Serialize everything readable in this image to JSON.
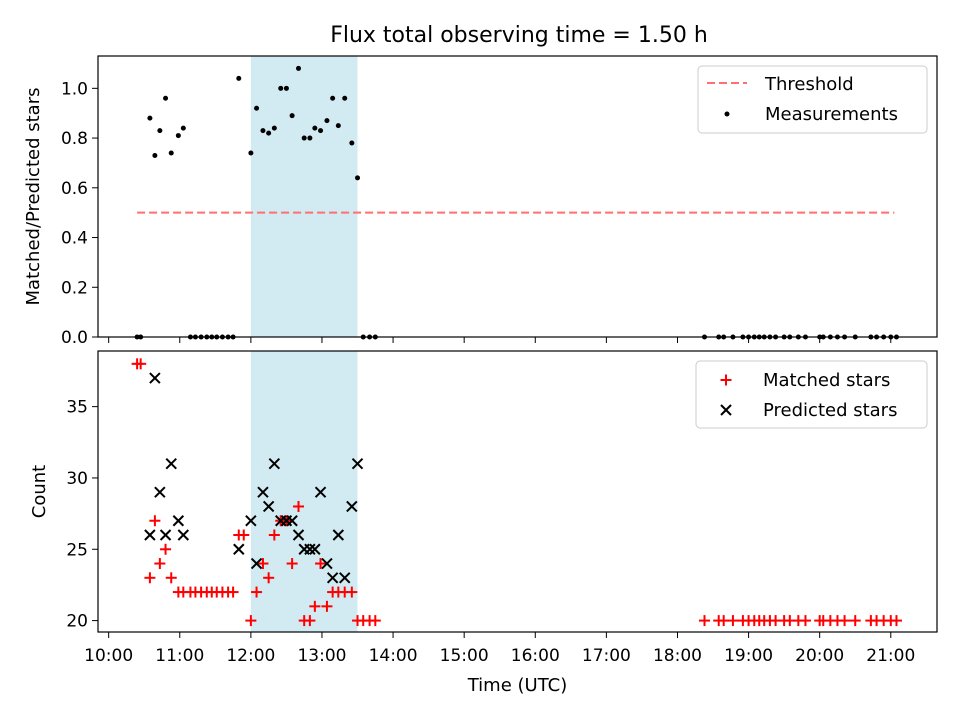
{
  "chart_data": {
    "title": "Flux total observing time = 1.50 h",
    "xlabel": "Time (UTC)",
    "x_ticks": [
      "10:00",
      "11:00",
      "12:00",
      "13:00",
      "14:00",
      "15:00",
      "16:00",
      "17:00",
      "18:00",
      "19:00",
      "20:00",
      "21:00"
    ],
    "x_range_hours": [
      9.85,
      21.65
    ],
    "highlight_span_hours": [
      12.0,
      13.5
    ],
    "colors": {
      "highlight": "#add8e6",
      "threshold": "#ff6f6f",
      "matched": "#ff0000",
      "predicted": "#000000",
      "measurement": "#000000"
    },
    "top": {
      "type": "scatter",
      "ylabel": "Matched/Predicted stars",
      "ylim": [
        0,
        1.13
      ],
      "y_ticks": [
        "0.0",
        "0.2",
        "0.4",
        "0.6",
        "0.8",
        "1.0"
      ],
      "legend": {
        "position": "top-right",
        "entries": [
          "Threshold",
          "Measurements"
        ]
      },
      "threshold": {
        "value": 0.5,
        "x_start": 10.4,
        "x_end": 21.05
      },
      "measurements": {
        "x": [
          10.4,
          10.45,
          10.58,
          10.65,
          10.72,
          10.8,
          10.88,
          10.98,
          11.05,
          11.15,
          11.22,
          11.3,
          11.38,
          11.45,
          11.52,
          11.6,
          11.68,
          11.75,
          11.83,
          12.0,
          12.08,
          12.17,
          12.25,
          12.33,
          12.42,
          12.5,
          12.58,
          12.67,
          12.75,
          12.83,
          12.9,
          12.98,
          13.07,
          13.15,
          13.23,
          13.32,
          13.42,
          13.5,
          13.58,
          13.67,
          13.75,
          18.38,
          18.58,
          18.65,
          18.78,
          18.92,
          19.0,
          19.08,
          19.15,
          19.22,
          19.3,
          19.38,
          19.5,
          19.58,
          19.7,
          19.8,
          20.0,
          20.05,
          20.15,
          20.25,
          20.35,
          20.5,
          20.72,
          20.8,
          20.9,
          21.0,
          21.08
        ],
        "y": [
          0,
          0,
          0.88,
          0.73,
          0.83,
          0.96,
          0.74,
          0.81,
          0.84,
          0,
          0,
          0,
          0,
          0,
          0,
          0,
          0,
          0,
          1.04,
          0.74,
          0.92,
          0.83,
          0.82,
          0.84,
          1.0,
          1.0,
          0.89,
          1.08,
          0.8,
          0.8,
          0.84,
          0.83,
          0.87,
          0.96,
          0.85,
          0.96,
          0.78,
          0.64,
          0,
          0,
          0,
          0,
          0,
          0,
          0,
          0,
          0,
          0,
          0,
          0,
          0,
          0,
          0,
          0,
          0,
          0,
          0,
          0,
          0,
          0,
          0,
          0,
          0,
          0,
          0,
          0,
          0
        ]
      }
    },
    "bottom": {
      "type": "scatter",
      "ylabel": "Count",
      "ylim": [
        19.2,
        38.9
      ],
      "y_ticks": [
        "20",
        "25",
        "30",
        "35"
      ],
      "legend": {
        "position": "top-right",
        "entries": [
          "Matched stars",
          "Predicted stars"
        ]
      },
      "matched": {
        "x": [
          10.4,
          10.45,
          10.58,
          10.65,
          10.72,
          10.8,
          10.88,
          10.98,
          11.05,
          11.15,
          11.22,
          11.3,
          11.38,
          11.45,
          11.52,
          11.6,
          11.68,
          11.75,
          11.83,
          11.9,
          12.0,
          12.08,
          12.17,
          12.25,
          12.33,
          12.42,
          12.5,
          12.58,
          12.67,
          12.75,
          12.83,
          12.9,
          12.98,
          13.07,
          13.15,
          13.23,
          13.32,
          13.42,
          13.5,
          13.58,
          13.67,
          13.75,
          18.38,
          18.58,
          18.65,
          18.78,
          18.92,
          19.0,
          19.08,
          19.15,
          19.22,
          19.3,
          19.38,
          19.5,
          19.58,
          19.7,
          19.8,
          20.0,
          20.05,
          20.15,
          20.25,
          20.35,
          20.5,
          20.72,
          20.8,
          20.9,
          21.0,
          21.08
        ],
        "y": [
          38,
          38,
          23,
          27,
          24,
          25,
          23,
          22,
          22,
          22,
          22,
          22,
          22,
          22,
          22,
          22,
          22,
          22,
          26,
          26,
          20,
          22,
          24,
          23,
          26,
          27,
          27,
          24,
          28,
          20,
          20,
          21,
          24,
          21,
          22,
          22,
          22,
          22,
          20,
          20,
          20,
          20,
          20,
          20,
          20,
          20,
          20,
          20,
          20,
          20,
          20,
          20,
          20,
          20,
          20,
          20,
          20,
          20,
          20,
          20,
          20,
          20,
          20,
          20,
          20,
          20,
          20,
          20
        ]
      },
      "predicted": {
        "x": [
          10.58,
          10.65,
          10.72,
          10.8,
          10.88,
          10.98,
          11.05,
          11.83,
          12.0,
          12.08,
          12.17,
          12.25,
          12.33,
          12.42,
          12.5,
          12.58,
          12.67,
          12.75,
          12.83,
          12.9,
          12.98,
          13.07,
          13.15,
          13.23,
          13.32,
          13.42,
          13.5
        ],
        "y": [
          26,
          37,
          29,
          26,
          31,
          27,
          26,
          25,
          27,
          24,
          29,
          28,
          31,
          27,
          27,
          27,
          26,
          25,
          25,
          25,
          29,
          24,
          23,
          26,
          23,
          28,
          31
        ]
      }
    }
  }
}
